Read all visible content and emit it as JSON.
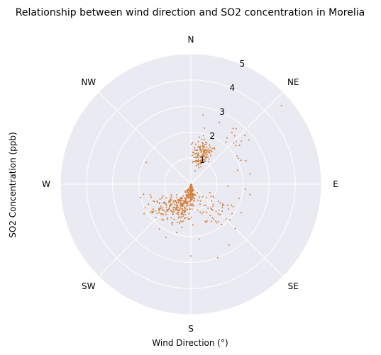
{
  "chart_data": {
    "type": "scatter",
    "projection": "polar",
    "title": "Relationship between wind direction and SO2 concentration in Morelia",
    "xlabel": "Wind Direction (°)",
    "ylabel": "SO2 Concentration (ppb)",
    "direction_labels": [
      "N",
      "NE",
      "E",
      "SE",
      "S",
      "SW",
      "W",
      "NW"
    ],
    "radial_ticks": [
      "1",
      "2",
      "3",
      "4",
      "5"
    ],
    "rlim": [
      0,
      5
    ],
    "theta_zero": "N",
    "theta_direction": "clockwise",
    "grid": true,
    "marker_color": "#d4803a",
    "background_color": "#eaeaf2",
    "grid_color": "#ffffff",
    "clusters": [
      {
        "theta_center_deg": 20,
        "theta_spread_deg": 14,
        "r_center": 1.25,
        "r_spread": 0.45,
        "count": 140
      },
      {
        "theta_center_deg": 178,
        "theta_spread_deg": 20,
        "r_center": 0.35,
        "r_spread": 0.45,
        "count": 120
      },
      {
        "theta_center_deg": 202,
        "theta_spread_deg": 22,
        "r_center": 0.85,
        "r_spread": 0.55,
        "count": 180
      },
      {
        "theta_center_deg": 232,
        "theta_spread_deg": 16,
        "r_center": 1.4,
        "r_spread": 0.5,
        "count": 80
      },
      {
        "theta_center_deg": 135,
        "theta_spread_deg": 30,
        "r_center": 1.4,
        "r_spread": 0.6,
        "count": 60
      },
      {
        "theta_center_deg": 45,
        "theta_spread_deg": 25,
        "r_center": 2.2,
        "r_spread": 0.6,
        "count": 18
      }
    ],
    "points": [
      {
        "theta_deg": 10,
        "r": 2.7
      },
      {
        "theta_deg": 38,
        "r": 2.25
      },
      {
        "theta_deg": 42,
        "r": 2.5
      },
      {
        "theta_deg": 49,
        "r": 4.6
      },
      {
        "theta_deg": 296,
        "r": 1.9
      },
      {
        "theta_deg": 255,
        "r": 2.0
      },
      {
        "theta_deg": 258,
        "r": 1.85
      },
      {
        "theta_deg": 160,
        "r": 3.0
      },
      {
        "theta_deg": 148,
        "r": 2.75
      },
      {
        "theta_deg": 135,
        "r": 2.4
      },
      {
        "theta_deg": 180,
        "r": 2.75
      },
      {
        "theta_deg": 205,
        "r": 2.25
      },
      {
        "theta_deg": 80,
        "r": 2.3
      },
      {
        "theta_deg": 95,
        "r": 2.1
      },
      {
        "theta_deg": 100,
        "r": 2.3
      },
      {
        "theta_deg": 215,
        "r": 2.1
      },
      {
        "theta_deg": 252,
        "r": 1.6
      }
    ]
  }
}
